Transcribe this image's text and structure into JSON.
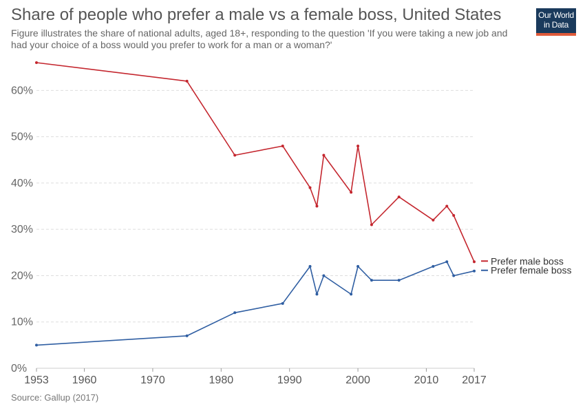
{
  "header": {
    "title": "Share of people who prefer a male vs a female boss, United States",
    "subtitle": "Figure illustrates the share of national adults, aged 18+, responding to the question 'If you were taking a new job and had your choice of a boss would you prefer to work for a man or a woman?'",
    "logo_line1": "Our World",
    "logo_line2": "in Data"
  },
  "footer": {
    "source": "Source: Gallup (2017)"
  },
  "colors": {
    "male": "#c4262e",
    "female": "#2f5ea2",
    "grid": "#dddddd",
    "logo_bg": "#1a3a5c",
    "logo_bar": "#e05a3a"
  },
  "chart_data": {
    "type": "line",
    "x_ticks": [
      1953,
      1960,
      1970,
      1980,
      1990,
      2000,
      2010,
      2017
    ],
    "y_ticks": [
      0,
      10,
      20,
      30,
      40,
      50,
      60
    ],
    "y_tick_labels": [
      "0%",
      "10%",
      "20%",
      "30%",
      "40%",
      "50%",
      "60%"
    ],
    "xlim": [
      1953,
      2017
    ],
    "ylim": [
      0,
      66
    ],
    "grid": true,
    "legend_placement": "right",
    "series": [
      {
        "name": "Prefer male boss",
        "x": [
          1953,
          1975,
          1982,
          1989,
          1993,
          1994,
          1995,
          1999,
          2000,
          2002,
          2006,
          2011,
          2013,
          2014,
          2017
        ],
        "values": [
          66,
          62,
          46,
          48,
          39,
          35,
          46,
          38,
          48,
          31,
          37,
          32,
          35,
          33,
          23
        ]
      },
      {
        "name": "Prefer female boss",
        "x": [
          1953,
          1975,
          1982,
          1989,
          1993,
          1994,
          1995,
          1999,
          2000,
          2002,
          2006,
          2011,
          2013,
          2014,
          2017
        ],
        "values": [
          5,
          7,
          12,
          14,
          22,
          16,
          20,
          16,
          22,
          19,
          19,
          22,
          23,
          20,
          21
        ]
      }
    ]
  }
}
